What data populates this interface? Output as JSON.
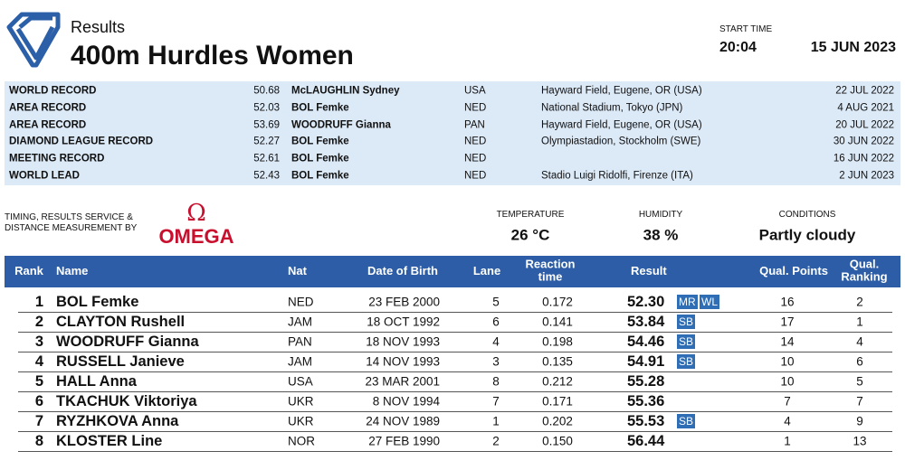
{
  "header": {
    "subtitle": "Results",
    "title": "400m Hurdles Women",
    "start_time_label": "START TIME",
    "start_time": "20:04",
    "date": "15 JUN 2023"
  },
  "records": [
    {
      "label": "WORLD RECORD",
      "mark": "50.68",
      "athlete": "McLAUGHLIN Sydney",
      "nat": "USA",
      "venue": "Hayward Field, Eugene, OR (USA)",
      "date": "22 JUL 2022"
    },
    {
      "label": "AREA RECORD",
      "mark": "52.03",
      "athlete": "BOL Femke",
      "nat": "NED",
      "venue": "National Stadium, Tokyo (JPN)",
      "date": "4 AUG 2021"
    },
    {
      "label": "AREA RECORD",
      "mark": "53.69",
      "athlete": "WOODRUFF Gianna",
      "nat": "PAN",
      "venue": "Hayward Field, Eugene, OR (USA)",
      "date": "20 JUL 2022"
    },
    {
      "label": "DIAMOND LEAGUE RECORD",
      "mark": "52.27",
      "athlete": "BOL Femke",
      "nat": "NED",
      "venue": "Olympiastadion, Stockholm (SWE)",
      "date": "30 JUN 2022"
    },
    {
      "label": "MEETING RECORD",
      "mark": "52.61",
      "athlete": "BOL Femke",
      "nat": "NED",
      "date": "16 JUN 2022"
    },
    {
      "label": "WORLD LEAD",
      "mark": "52.43",
      "athlete": "BOL Femke",
      "nat": "NED",
      "venue": "Stadio Luigi Ridolfi, Firenze (ITA)",
      "date": "2 JUN 2023"
    }
  ],
  "timing": {
    "label": "TIMING, RESULTS SERVICE & DISTANCE MEASUREMENT BY",
    "logo_symbol": "Ω",
    "logo_text": "OMEGA"
  },
  "conditions": [
    {
      "label": "TEMPERATURE",
      "value": "26 °C"
    },
    {
      "label": "HUMIDITY",
      "value": "38 %"
    },
    {
      "label": "CONDITIONS",
      "value": "Partly cloudy"
    }
  ],
  "table": {
    "columns": [
      "Rank",
      "Name",
      "Nat",
      "Date of Birth",
      "Lane",
      "Reaction time",
      "Result",
      "Qual. Points",
      "Qual. Ranking"
    ],
    "rows": [
      {
        "rank": "1",
        "name": "BOL Femke",
        "nat": "NED",
        "dob": "23 FEB 2000",
        "lane": "5",
        "reaction": "0.172",
        "result": "52.30",
        "badges": [
          "MR",
          "WL"
        ],
        "qual_points": "16",
        "qual_ranking": "2"
      },
      {
        "rank": "2",
        "name": "CLAYTON Rushell",
        "nat": "JAM",
        "dob": "18 OCT 1992",
        "lane": "6",
        "reaction": "0.141",
        "result": "53.84",
        "badges": [
          "SB"
        ],
        "qual_points": "17",
        "qual_ranking": "1"
      },
      {
        "rank": "3",
        "name": "WOODRUFF Gianna",
        "nat": "PAN",
        "dob": "18 NOV 1993",
        "lane": "4",
        "reaction": "0.198",
        "result": "54.46",
        "badges": [
          "SB"
        ],
        "qual_points": "14",
        "qual_ranking": "4"
      },
      {
        "rank": "4",
        "name": "RUSSELL Janieve",
        "nat": "JAM",
        "dob": "14 NOV 1993",
        "lane": "3",
        "reaction": "0.135",
        "result": "54.91",
        "badges": [
          "SB"
        ],
        "qual_points": "10",
        "qual_ranking": "6"
      },
      {
        "rank": "5",
        "name": "HALL Anna",
        "nat": "USA",
        "dob": "23 MAR 2001",
        "lane": "8",
        "reaction": "0.212",
        "result": "55.28",
        "qual_points": "10",
        "qual_ranking": "5"
      },
      {
        "rank": "6",
        "name": "TKACHUK Viktoriya",
        "nat": "UKR",
        "dob": "8 NOV 1994",
        "lane": "7",
        "reaction": "0.171",
        "result": "55.36",
        "qual_points": "7",
        "qual_ranking": "7"
      },
      {
        "rank": "7",
        "name": "RYZHKOVA Anna",
        "nat": "UKR",
        "dob": "24 NOV 1989",
        "lane": "1",
        "reaction": "0.202",
        "result": "55.53",
        "badges": [
          "SB"
        ],
        "qual_points": "4",
        "qual_ranking": "9"
      },
      {
        "rank": "8",
        "name": "KLOSTER Line",
        "nat": "NOR",
        "dob": "27 FEB 1990",
        "lane": "2",
        "reaction": "0.150",
        "result": "56.44",
        "qual_points": "1",
        "qual_ranking": "13"
      }
    ]
  }
}
